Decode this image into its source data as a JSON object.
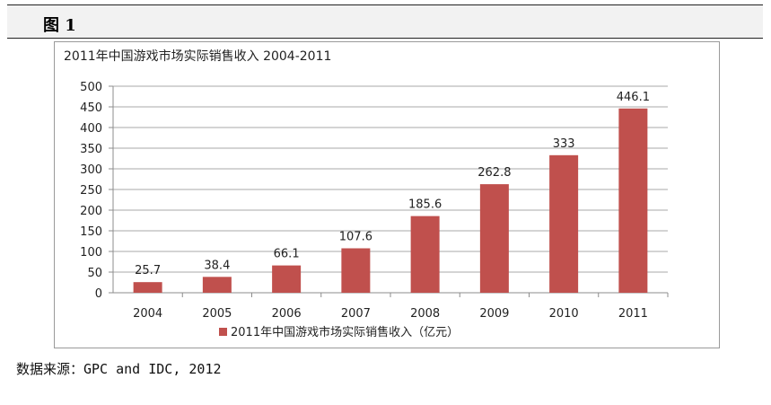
{
  "figure": {
    "label": "图 1"
  },
  "chart_data": {
    "type": "bar",
    "title": "2011年中国游戏市场实际销售收入 2004-2011",
    "categories": [
      "2004",
      "2005",
      "2006",
      "2007",
      "2008",
      "2009",
      "2010",
      "2011"
    ],
    "series": [
      {
        "name": "2011年中国游戏市场实际销售收入（亿元）",
        "values": [
          25.7,
          38.4,
          66.1,
          107.6,
          185.6,
          262.8,
          333,
          446.1
        ],
        "data_labels": [
          "25.7",
          "38.4",
          "66.1",
          "107.6",
          "185.6",
          "262.8",
          "333",
          "446.1"
        ]
      }
    ],
    "ylim": [
      0,
      500
    ],
    "yticks": [
      "0",
      "50",
      "100",
      "150",
      "200",
      "250",
      "300",
      "350",
      "400",
      "450",
      "500"
    ],
    "grid": true,
    "legend_position": "bottom",
    "bar_color": "#c0504d"
  },
  "source": {
    "text": "数据来源：GPC and IDC, 2012"
  }
}
